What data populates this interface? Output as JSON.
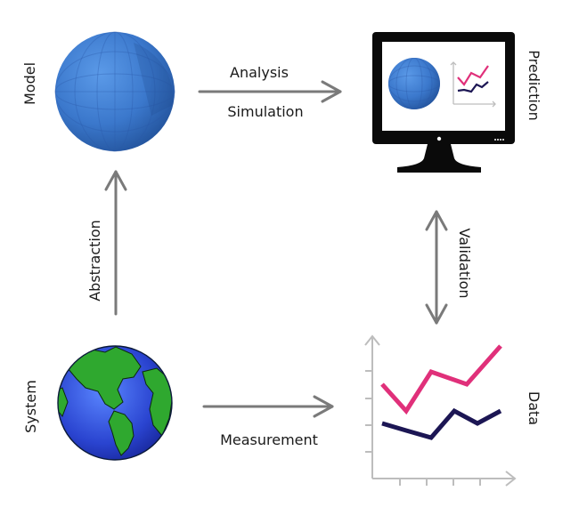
{
  "nodes": {
    "model": "Model",
    "prediction": "Prediction",
    "system": "System",
    "data": "Data"
  },
  "edges": {
    "analysis": "Analysis",
    "simulation": "Simulation",
    "abstraction": "Abstraction",
    "validation": "Validation",
    "measurement": "Measurement"
  },
  "colors": {
    "arrow": "#7a7a7a",
    "sphere": "#3f7fd0",
    "ocean": "#2a4fd8",
    "land": "#2fa82f",
    "series_top": "#e0307a",
    "series_bottom": "#1c1654",
    "axis": "#bdbdbd"
  },
  "icons": {
    "model": "sphere-icon",
    "prediction": "monitor-icon",
    "system": "earth-globe-icon",
    "data": "line-chart-icon"
  }
}
